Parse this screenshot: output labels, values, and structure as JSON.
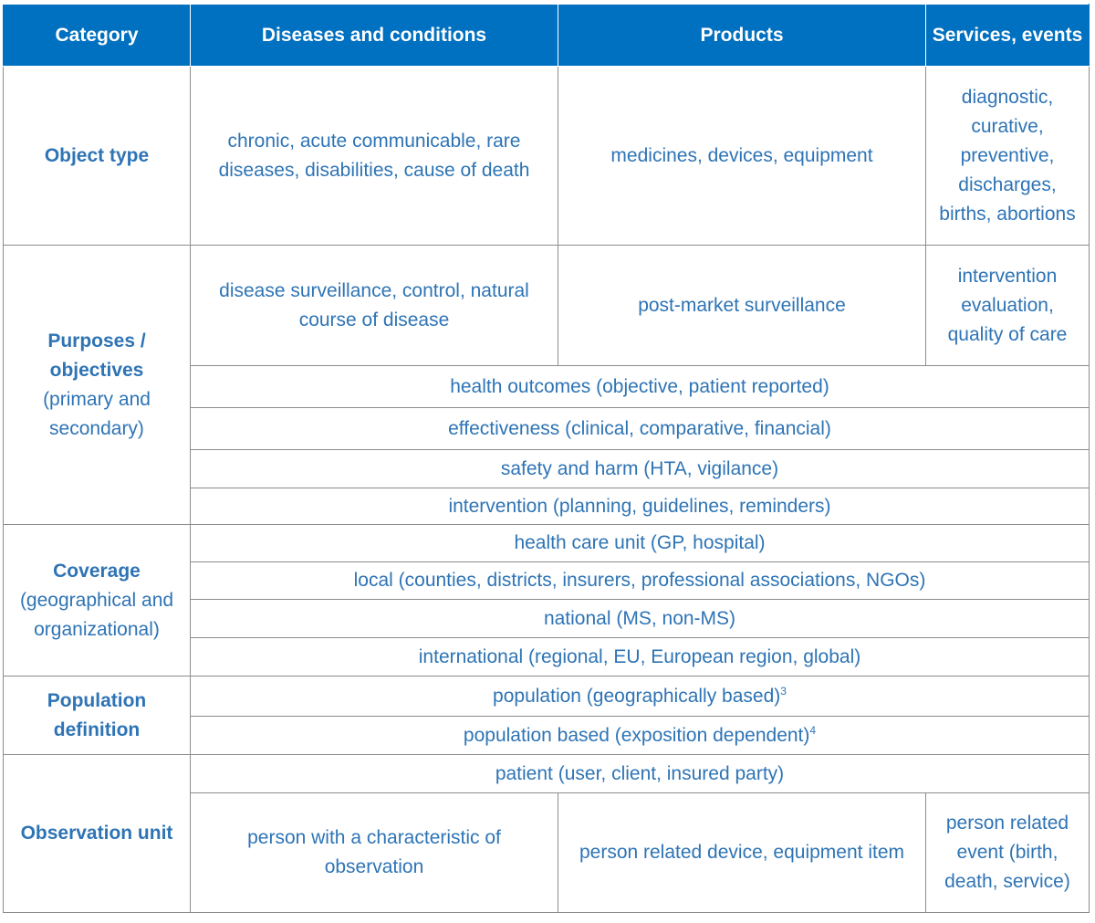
{
  "header": {
    "category": "Category",
    "diseases": "Diseases and conditions",
    "products": "Products",
    "services": "Services, events"
  },
  "object_type": {
    "label": "Object type",
    "diseases": "chronic, acute communicable, rare diseases, disabilities, cause of death",
    "products": "medicines, devices, equipment",
    "services": "diagnostic, curative, preventive, discharges, births, abortions"
  },
  "purposes": {
    "label_bold": "Purposes / objectives",
    "label_normal": "(primary and secondary)",
    "diseases": "disease surveillance, control, natural course of disease",
    "products": "post-market surveillance",
    "services": "intervention evaluation, quality of care",
    "rows": [
      "health outcomes (objective, patient reported)",
      "effectiveness (clinical, comparative, financial)",
      "safety and harm (HTA, vigilance)",
      "intervention (planning, guidelines, reminders)"
    ]
  },
  "coverage": {
    "label_bold": "Coverage",
    "label_normal": "(geographical and organizational)",
    "rows": [
      "health care unit (GP, hospital)",
      "local (counties, districts, insurers, professional associations, NGOs)",
      "national (MS, non-MS)",
      "international (regional, EU, European region, global)"
    ]
  },
  "population": {
    "label": "Population definition",
    "row1": "population (geographically based)",
    "row1_sup": "3",
    "row2": "population based (exposition dependent)",
    "row2_sup": "4"
  },
  "observation": {
    "label": "Observation unit",
    "patient": "patient (user, client, insured party)",
    "diseases": "person with a characteristic of observation",
    "products": "person related device, equipment item",
    "services": "person related event (birth, death, service)"
  }
}
